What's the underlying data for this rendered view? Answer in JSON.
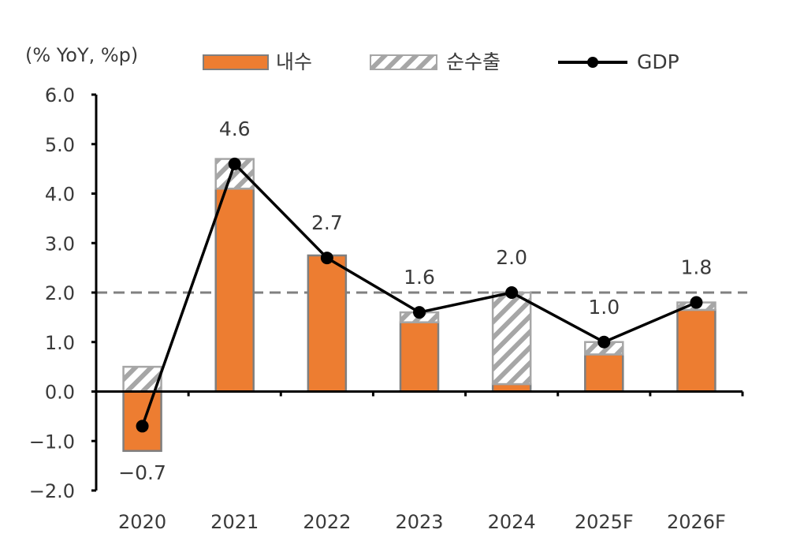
{
  "chart_data": {
    "type": "bar",
    "title": "",
    "unit_label": "(% YoY, %p)",
    "categories": [
      "2020",
      "2021",
      "2022",
      "2023",
      "2024",
      "2025F",
      "2026F"
    ],
    "series": [
      {
        "name": "내수",
        "kind": "bar",
        "color": "#ED7D31",
        "values": [
          -1.2,
          4.1,
          2.75,
          1.4,
          0.15,
          0.75,
          1.65
        ]
      },
      {
        "name": "순수출",
        "kind": "bar-hatched",
        "color": "#A6A6A6",
        "values": [
          0.5,
          0.6,
          0.0,
          0.2,
          1.85,
          0.25,
          0.15
        ]
      },
      {
        "name": "GDP",
        "kind": "line",
        "color": "#000000",
        "values": [
          -0.7,
          4.6,
          2.7,
          1.6,
          2.0,
          1.0,
          1.8
        ]
      }
    ],
    "data_labels": [
      "-0.7",
      "4.6",
      "2.7",
      "1.6",
      "2.0",
      "1.0",
      "1.8"
    ],
    "ylim": [
      -2.0,
      6.0
    ],
    "yticks": [
      "6.0",
      "5.0",
      "4.0",
      "3.0",
      "2.0",
      "1.0",
      "0.0",
      "-1.0",
      "-2.0"
    ],
    "reference_line": {
      "value": 2.0,
      "style": "dashed",
      "color": "#808080"
    },
    "legend_position": "top",
    "xlabel": "",
    "ylabel": ""
  }
}
